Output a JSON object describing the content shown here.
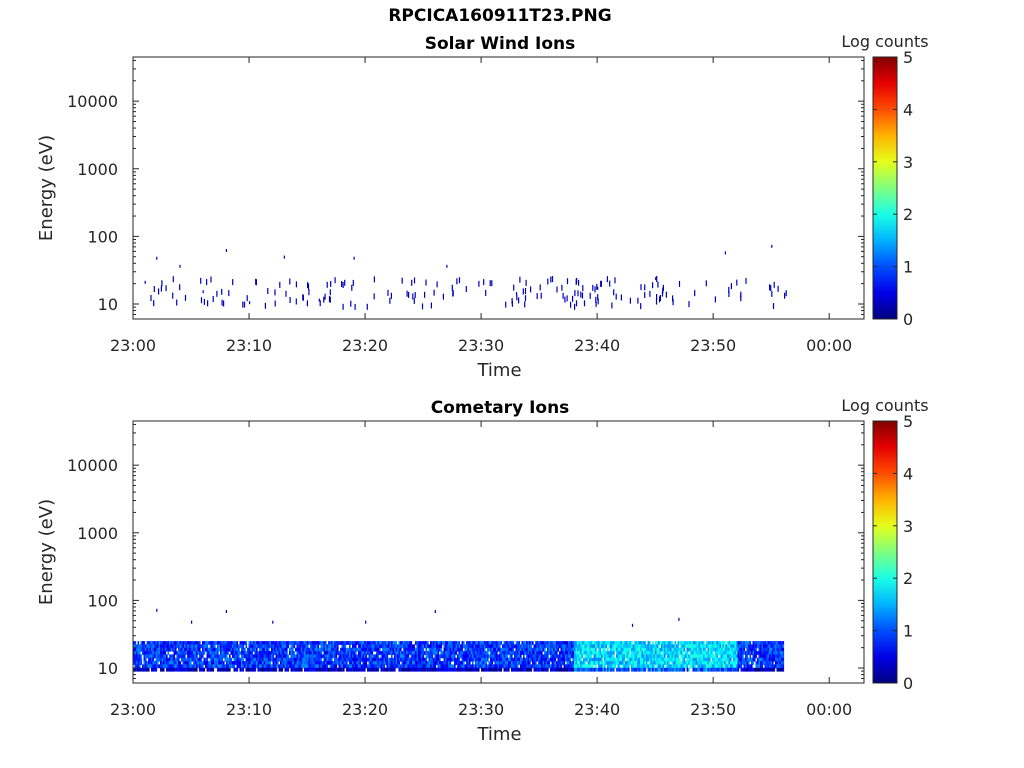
{
  "figure": {
    "title": "RPCICA160911T23.PNG"
  },
  "chart_data": [
    {
      "type": "heatmap",
      "title": "Solar Wind Ions",
      "xlabel": "Time",
      "ylabel": "Energy (eV)",
      "x_ticks": [
        "23:00",
        "23:10",
        "23:20",
        "23:30",
        "23:40",
        "23:50",
        "00:00"
      ],
      "xlim": [
        "23:00",
        "00:03"
      ],
      "y_scale": "log",
      "y_ticks": [
        10,
        100,
        1000,
        10000
      ],
      "y_tick_labels": [
        "10",
        "100",
        "1000",
        "10000"
      ],
      "ylim": [
        6,
        45000
      ],
      "colorbar": {
        "label": "Log counts",
        "range": [
          0,
          5
        ],
        "ticks": [
          "0",
          "1",
          "2",
          "3",
          "4",
          "5"
        ],
        "colormap": "jet"
      },
      "data_description": "Sparse single-count detections scattered between 23:01 and 23:56 at energies of roughly 10 to 75 eV, mostly near 15 to 25 eV, all at log counts of about 0 to 0.5.",
      "sample_points": [
        {
          "t": "23:01",
          "e": 22,
          "v": 0.3
        },
        {
          "t": "23:02",
          "e": 50,
          "v": 0.3
        },
        {
          "t": "23:04",
          "e": 38,
          "v": 0.3
        },
        {
          "t": "23:06",
          "e": 16,
          "v": 0.3
        },
        {
          "t": "23:08",
          "e": 65,
          "v": 0.3
        },
        {
          "t": "23:10",
          "e": 11,
          "v": 0.3
        },
        {
          "t": "23:13",
          "e": 52,
          "v": 0.3
        },
        {
          "t": "23:16",
          "e": 12,
          "v": 0.3
        },
        {
          "t": "23:19",
          "e": 50,
          "v": 0.3
        },
        {
          "t": "23:27",
          "e": 38,
          "v": 0.3
        },
        {
          "t": "23:33",
          "e": 15,
          "v": 0.3
        },
        {
          "t": "23:40",
          "e": 18,
          "v": 0.3
        },
        {
          "t": "23:45",
          "e": 25,
          "v": 0.3
        },
        {
          "t": "23:51",
          "e": 60,
          "v": 0.3
        },
        {
          "t": "23:55",
          "e": 75,
          "v": 0.3
        }
      ]
    },
    {
      "type": "heatmap",
      "title": "Cometary Ions",
      "xlabel": "Time",
      "ylabel": "Energy (eV)",
      "x_ticks": [
        "23:00",
        "23:10",
        "23:20",
        "23:30",
        "23:40",
        "23:50",
        "00:00"
      ],
      "xlim": [
        "23:00",
        "00:03"
      ],
      "y_scale": "log",
      "y_ticks": [
        10,
        100,
        1000,
        10000
      ],
      "y_tick_labels": [
        "10",
        "100",
        "1000",
        "10000"
      ],
      "ylim": [
        6,
        45000
      ],
      "colorbar": {
        "label": "Log counts",
        "range": [
          0,
          5
        ],
        "ticks": [
          "0",
          "1",
          "2",
          "3",
          "4",
          "5"
        ],
        "colormap": "jet"
      },
      "data_description": "Continuous band of ion counts from 23:00 to 23:56 between about 9 and 25 eV, log counts mostly 0.5 to 1.5 with higher values (~1.5-1.8) between 23:38 and 23:52; sparse single counts up to ~75 eV.",
      "band": {
        "t_start": "23:00",
        "t_end": "23:56",
        "e_low": 9,
        "e_high": 25,
        "v_typical": 0.9,
        "v_peak": 1.7,
        "peak_start": "23:38",
        "peak_end": "23:52"
      },
      "sample_points": [
        {
          "t": "23:02",
          "e": 75,
          "v": 0.3
        },
        {
          "t": "23:05",
          "e": 50,
          "v": 0.3
        },
        {
          "t": "23:08",
          "e": 72,
          "v": 0.3
        },
        {
          "t": "23:12",
          "e": 50,
          "v": 0.3
        },
        {
          "t": "23:20",
          "e": 50,
          "v": 0.3
        },
        {
          "t": "23:26",
          "e": 72,
          "v": 0.3
        },
        {
          "t": "23:43",
          "e": 45,
          "v": 0.3
        },
        {
          "t": "23:47",
          "e": 55,
          "v": 0.3
        }
      ]
    }
  ]
}
